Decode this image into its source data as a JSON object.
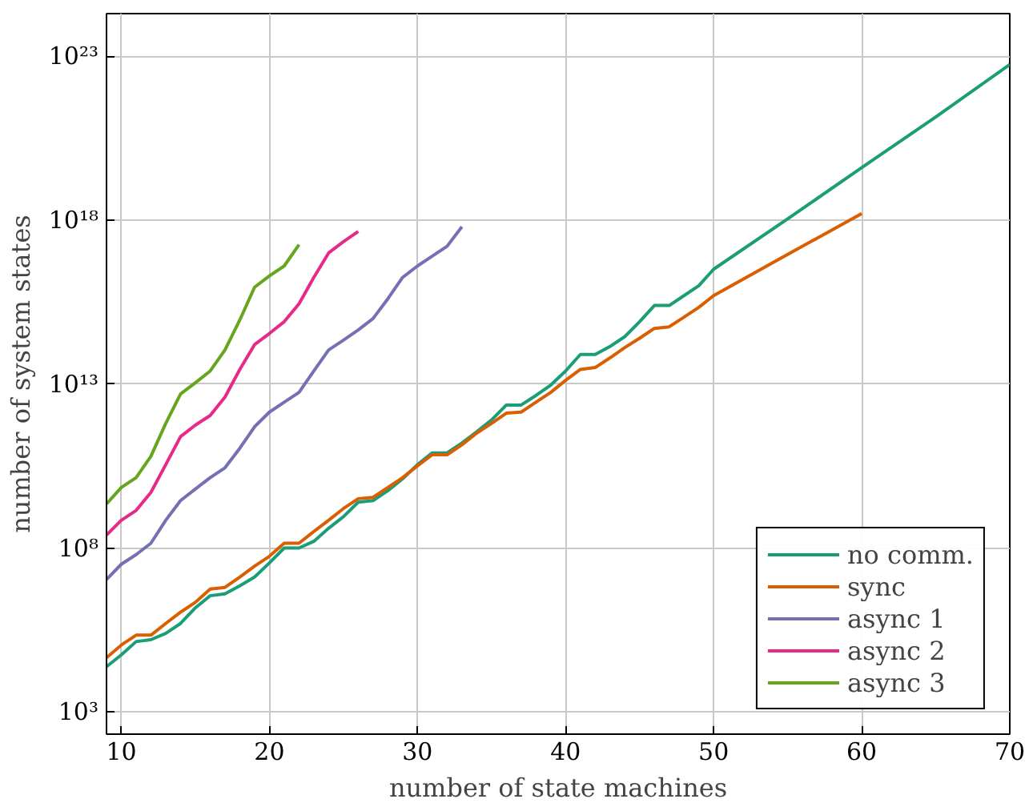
{
  "chart_data": {
    "type": "line",
    "xlabel": "number of state machines",
    "ylabel": "number of system states",
    "xlim": [
      9,
      70
    ],
    "ylim": [
      210,
      2e+24
    ],
    "log": "y",
    "grid": true,
    "legend": "bottom right",
    "line_style": "solid",
    "marker": "none",
    "xticks": [
      10,
      20,
      30,
      40,
      50,
      60,
      70
    ],
    "yticks": [
      {
        "value": 1000.0,
        "label": "10³"
      },
      {
        "value": 100000000.0,
        "label": "10⁸"
      },
      {
        "value": 10000000000000.0,
        "label": "10¹³"
      },
      {
        "value": 1e+18,
        "label": "10¹⁸"
      },
      {
        "value": 1e+23,
        "label": "10²³"
      }
    ],
    "series": [
      {
        "name": "no comm.",
        "color": "#1b9e77",
        "x": [
          9,
          10,
          11,
          12,
          13,
          14,
          15,
          16,
          17,
          18,
          19,
          20,
          21,
          22,
          23,
          24,
          25,
          26,
          27,
          28,
          29,
          30,
          31,
          32,
          33,
          34,
          35,
          36,
          37,
          38,
          39,
          40,
          41,
          42,
          43,
          44,
          45,
          46,
          47,
          48,
          49,
          50,
          55,
          60,
          65,
          70
        ],
        "values": [
          24000.0,
          55000.0,
          140000.0,
          160000.0,
          250000.0,
          500000.0,
          1500000.0,
          3500000.0,
          4000000.0,
          7000000.0,
          13000000.0,
          35000000.0,
          100000000.0,
          100000000.0,
          160000000.0,
          400000000.0,
          900000000.0,
          2500000000.0,
          2800000000.0,
          5600000000.0,
          13000000000.0,
          35000000000.0,
          80000000000.0,
          80000000000.0,
          160000000000.0,
          350000000000.0,
          800000000000.0,
          2300000000000.0,
          2300000000000.0,
          4500000000000.0,
          9300000000000.0,
          25000000000000.0,
          80000000000000.0,
          80000000000000.0,
          140000000000000.0,
          280000000000000.0,
          800000000000000.0,
          2500000000000000.0,
          2500000000000000.0,
          5000000000000000.0,
          1e+16,
          3.2e+16,
          1.1e+18,
          4e+19,
          1.4e+21,
          5.6e+22
        ]
      },
      {
        "name": "sync",
        "color": "#d95f02",
        "x": [
          9,
          10,
          11,
          12,
          13,
          14,
          15,
          16,
          17,
          18,
          19,
          20,
          21,
          22,
          23,
          24,
          25,
          26,
          27,
          28,
          29,
          30,
          31,
          32,
          33,
          34,
          35,
          36,
          37,
          38,
          39,
          40,
          41,
          42,
          43,
          44,
          45,
          46,
          47,
          48,
          49,
          50,
          55,
          60
        ],
        "values": [
          45000.0,
          110000.0,
          220000.0,
          220000.0,
          500000.0,
          1100000.0,
          2200000.0,
          5600000.0,
          6300000.0,
          13000000.0,
          28000000.0,
          56000000.0,
          140000000.0,
          140000000.0,
          320000000.0,
          700000000.0,
          1600000000.0,
          3200000000.0,
          3500000000.0,
          7000000000.0,
          14000000000.0,
          32000000000.0,
          70000000000.0,
          70000000000.0,
          140000000000.0,
          320000000000.0,
          630000000000.0,
          1300000000000.0,
          1400000000000.0,
          2800000000000.0,
          5600000000000.0,
          13000000000000.0,
          28000000000000.0,
          32000000000000.0,
          63000000000000.0,
          130000000000000.0,
          250000000000000.0,
          500000000000000.0,
          560000000000000.0,
          1100000000000000.0,
          2200000000000000.0,
          5000000000000000.0,
          9e+16,
          1.6e+18
        ]
      },
      {
        "name": "async 1",
        "color": "#7570b3",
        "x": [
          9,
          10,
          11,
          12,
          13,
          14,
          15,
          16,
          17,
          18,
          19,
          20,
          21,
          22,
          23,
          24,
          25,
          26,
          27,
          28,
          29,
          30,
          31,
          32,
          33
        ],
        "values": [
          11000000.0,
          32000000.0,
          63000000.0,
          140000000.0,
          700000000.0,
          2800000000.0,
          6300000000.0,
          14000000000.0,
          28000000000.0,
          110000000000.0,
          500000000000.0,
          1400000000000.0,
          2800000000000.0,
          5600000000000.0,
          25000000000000.0,
          110000000000000.0,
          220000000000000.0,
          450000000000000.0,
          1000000000000000.0,
          4000000000000000.0,
          1.8e+16,
          4e+16,
          8e+16,
          1.6e+17,
          6.3e+17
        ]
      },
      {
        "name": "async 2",
        "color": "#e7298a",
        "x": [
          9,
          10,
          11,
          12,
          13,
          14,
          15,
          16,
          17,
          18,
          19,
          20,
          21,
          22,
          23,
          24,
          25,
          26
        ],
        "values": [
          250000000.0,
          700000000.0,
          1400000000.0,
          5000000000.0,
          35000000000.0,
          250000000000.0,
          560000000000.0,
          1100000000000.0,
          4000000000000.0,
          28000000000000.0,
          160000000000000.0,
          350000000000000.0,
          800000000000000.0,
          2800000000000000.0,
          1.8e+16,
          1e+17,
          2.2e+17,
          4.5e+17
        ]
      },
      {
        "name": "async 3",
        "color": "#66a61e",
        "x": [
          9,
          10,
          11,
          12,
          13,
          14,
          15,
          16,
          17,
          18,
          19,
          20,
          21,
          22
        ],
        "values": [
          2200000000.0,
          7000000000.0,
          14000000000.0,
          63000000000.0,
          630000000000.0,
          5000000000000.0,
          11000000000000.0,
          25000000000000.0,
          110000000000000.0,
          900000000000000.0,
          9000000000000000.0,
          2e+16,
          4e+16,
          1.8e+17
        ]
      }
    ]
  }
}
